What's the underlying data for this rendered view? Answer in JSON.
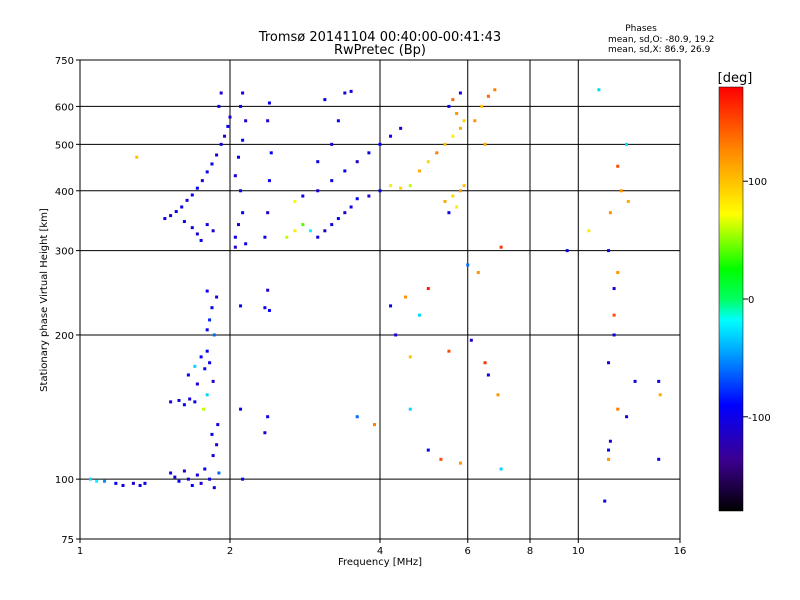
{
  "chart_data": {
    "type": "scatter",
    "title": "Tromsø 20141104 00:40:00-00:41:43",
    "subtitle": "RwPretec (Bp)",
    "xlabel": "Frequency [MHz]",
    "ylabel": "Stationary phase Virtual Height [km]",
    "xscale": "log",
    "yscale": "log",
    "xlim": [
      1,
      16
    ],
    "ylim": [
      75,
      750
    ],
    "xticks": [
      {
        "value": 1,
        "label": "1"
      },
      {
        "value": 2,
        "label": "2"
      },
      {
        "value": 4,
        "label": "4"
      },
      {
        "value": 6,
        "label": "6"
      },
      {
        "value": 8,
        "label": "8"
      },
      {
        "value": 10,
        "label": "10"
      },
      {
        "value": 16,
        "label": "16"
      }
    ],
    "xgrid": [
      2,
      4,
      6,
      8,
      10
    ],
    "yticks": [
      {
        "value": 75,
        "label": "75"
      },
      {
        "value": 100,
        "label": "100"
      },
      {
        "value": 200,
        "label": "200"
      },
      {
        "value": 300,
        "label": "300"
      },
      {
        "value": 400,
        "label": "400"
      },
      {
        "value": 500,
        "label": "500"
      },
      {
        "value": 600,
        "label": "600"
      },
      {
        "value": 750,
        "label": "750"
      }
    ],
    "ygrid": [
      100,
      200,
      300,
      400,
      500,
      600
    ],
    "grid": true,
    "colorbar": {
      "label": "[deg]",
      "range": [
        -180,
        180
      ],
      "ticks": [
        {
          "value": 100,
          "label": "100"
        },
        {
          "value": 0,
          "label": "0"
        },
        {
          "value": -100,
          "label": "-100"
        }
      ]
    },
    "stats": {
      "heading": "Phases",
      "line1": "mean, sd,O: -80.9, 19.2",
      "line2": "mean, sd,X:  86.9, 26.9"
    },
    "points": [
      [
        1.05,
        100,
        -30
      ],
      [
        1.08,
        99,
        -20
      ],
      [
        1.12,
        99,
        -50
      ],
      [
        1.18,
        98,
        -90
      ],
      [
        1.22,
        97,
        -100
      ],
      [
        1.28,
        98,
        -110
      ],
      [
        1.32,
        97,
        -100
      ],
      [
        1.35,
        98,
        -95
      ],
      [
        1.52,
        103,
        -100
      ],
      [
        1.55,
        101,
        -110
      ],
      [
        1.58,
        99,
        -95
      ],
      [
        1.62,
        104,
        -110
      ],
      [
        1.65,
        100,
        -100
      ],
      [
        1.68,
        97,
        -90
      ],
      [
        1.72,
        102,
        -105
      ],
      [
        1.75,
        98,
        -110
      ],
      [
        1.78,
        105,
        -95
      ],
      [
        1.82,
        100,
        -100
      ],
      [
        1.86,
        96,
        -100
      ],
      [
        1.9,
        103,
        -60
      ],
      [
        1.85,
        112,
        -100
      ],
      [
        1.88,
        118,
        -110
      ],
      [
        1.84,
        124,
        -90
      ],
      [
        1.89,
        130,
        -100
      ],
      [
        1.52,
        145,
        -110
      ],
      [
        1.58,
        146,
        -100
      ],
      [
        1.62,
        143,
        -90
      ],
      [
        1.66,
        147,
        -110
      ],
      [
        1.7,
        145,
        -100
      ],
      [
        1.65,
        165,
        -100
      ],
      [
        1.7,
        172,
        -30
      ],
      [
        1.75,
        180,
        -90
      ],
      [
        1.78,
        170,
        -100
      ],
      [
        1.72,
        158,
        -110
      ],
      [
        1.8,
        185,
        -95
      ],
      [
        1.82,
        175,
        -100
      ],
      [
        1.85,
        160,
        -110
      ],
      [
        1.8,
        150,
        -30
      ],
      [
        1.77,
        140,
        60
      ],
      [
        1.8,
        205,
        -100
      ],
      [
        1.82,
        215,
        -80
      ],
      [
        1.84,
        228,
        -90
      ],
      [
        1.8,
        247,
        -100
      ],
      [
        1.86,
        200,
        -60
      ],
      [
        1.88,
        240,
        -110
      ],
      [
        1.48,
        350,
        -100
      ],
      [
        1.52,
        355,
        -110
      ],
      [
        1.56,
        362,
        -95
      ],
      [
        1.6,
        370,
        -100
      ],
      [
        1.64,
        382,
        -110
      ],
      [
        1.68,
        392,
        -100
      ],
      [
        1.72,
        405,
        -95
      ],
      [
        1.76,
        420,
        -110
      ],
      [
        1.8,
        438,
        -100
      ],
      [
        1.84,
        455,
        -90
      ],
      [
        1.88,
        475,
        -110
      ],
      [
        1.92,
        500,
        -100
      ],
      [
        1.95,
        520,
        -110
      ],
      [
        1.98,
        545,
        -100
      ],
      [
        2.0,
        570,
        -110
      ],
      [
        1.9,
        600,
        -100
      ],
      [
        1.92,
        640,
        -110
      ],
      [
        1.62,
        345,
        -100
      ],
      [
        1.68,
        335,
        -105
      ],
      [
        1.72,
        325,
        -110
      ],
      [
        1.75,
        315,
        -95
      ],
      [
        1.8,
        340,
        -100
      ],
      [
        1.85,
        330,
        -110
      ],
      [
        2.05,
        320,
        -100
      ],
      [
        2.08,
        340,
        -110
      ],
      [
        2.12,
        360,
        -95
      ],
      [
        2.1,
        400,
        -100
      ],
      [
        2.05,
        430,
        -110
      ],
      [
        2.08,
        470,
        -100
      ],
      [
        2.12,
        510,
        -90
      ],
      [
        2.15,
        560,
        -110
      ],
      [
        2.1,
        600,
        -100
      ],
      [
        2.12,
        640,
        -105
      ],
      [
        2.05,
        305,
        -110
      ],
      [
        2.15,
        310,
        -100
      ],
      [
        2.35,
        320,
        -100
      ],
      [
        2.38,
        360,
        -110
      ],
      [
        2.4,
        420,
        -100
      ],
      [
        2.42,
        480,
        -95
      ],
      [
        2.38,
        560,
        -110
      ],
      [
        2.4,
        610,
        -100
      ],
      [
        2.1,
        230,
        -100
      ],
      [
        2.35,
        228,
        -100
      ],
      [
        2.38,
        248,
        -110
      ],
      [
        2.4,
        225,
        -95
      ],
      [
        2.38,
        135,
        -100
      ],
      [
        2.35,
        125,
        -110
      ],
      [
        2.1,
        140,
        -100
      ],
      [
        2.12,
        100,
        -90
      ],
      [
        2.6,
        320,
        60
      ],
      [
        2.7,
        330,
        80
      ],
      [
        2.8,
        340,
        40
      ],
      [
        2.9,
        330,
        -20
      ],
      [
        3.0,
        320,
        -100
      ],
      [
        3.1,
        330,
        -110
      ],
      [
        3.2,
        340,
        -100
      ],
      [
        3.3,
        350,
        -95
      ],
      [
        3.4,
        360,
        -110
      ],
      [
        3.5,
        370,
        -100
      ],
      [
        3.6,
        385,
        -90
      ],
      [
        3.8,
        390,
        -110
      ],
      [
        4.0,
        400,
        -100
      ],
      [
        4.2,
        410,
        80
      ],
      [
        4.4,
        405,
        90
      ],
      [
        4.6,
        410,
        60
      ],
      [
        2.7,
        380,
        70
      ],
      [
        2.8,
        390,
        -100
      ],
      [
        3.0,
        400,
        -110
      ],
      [
        3.2,
        420,
        -100
      ],
      [
        3.4,
        440,
        -90
      ],
      [
        3.6,
        460,
        -110
      ],
      [
        3.8,
        480,
        -100
      ],
      [
        4.0,
        500,
        -95
      ],
      [
        4.2,
        520,
        -100
      ],
      [
        4.4,
        540,
        -110
      ],
      [
        3.0,
        460,
        -100
      ],
      [
        3.2,
        500,
        -110
      ],
      [
        3.3,
        560,
        -100
      ],
      [
        3.1,
        620,
        -95
      ],
      [
        3.4,
        640,
        -110
      ],
      [
        3.5,
        645,
        -100
      ],
      [
        4.8,
        440,
        110
      ],
      [
        5.0,
        460,
        90
      ],
      [
        5.2,
        480,
        130
      ],
      [
        5.4,
        500,
        100
      ],
      [
        5.6,
        520,
        80
      ],
      [
        5.8,
        540,
        110
      ],
      [
        5.9,
        560,
        90
      ],
      [
        5.7,
        580,
        120
      ],
      [
        5.5,
        600,
        -100
      ],
      [
        5.6,
        620,
        140
      ],
      [
        5.8,
        640,
        -110
      ],
      [
        5.4,
        380,
        110
      ],
      [
        5.6,
        390,
        90
      ],
      [
        5.8,
        400,
        120
      ],
      [
        5.9,
        410,
        100
      ],
      [
        5.7,
        370,
        80
      ],
      [
        5.5,
        360,
        -100
      ],
      [
        6.2,
        560,
        120
      ],
      [
        6.4,
        600,
        100
      ],
      [
        6.6,
        630,
        140
      ],
      [
        6.8,
        650,
        130
      ],
      [
        6.5,
        500,
        110
      ],
      [
        7.0,
        305,
        160
      ],
      [
        6.0,
        280,
        -60
      ],
      [
        6.3,
        270,
        120
      ],
      [
        5.0,
        250,
        170
      ],
      [
        4.5,
        240,
        120
      ],
      [
        4.2,
        230,
        -100
      ],
      [
        4.8,
        220,
        -30
      ],
      [
        4.3,
        200,
        -110
      ],
      [
        6.1,
        195,
        -110
      ],
      [
        5.5,
        185,
        150
      ],
      [
        4.6,
        180,
        100
      ],
      [
        6.5,
        175,
        160
      ],
      [
        6.6,
        165,
        -100
      ],
      [
        6.9,
        150,
        120
      ],
      [
        4.6,
        140,
        -30
      ],
      [
        3.6,
        135,
        -60
      ],
      [
        3.9,
        130,
        130
      ],
      [
        5.0,
        115,
        -100
      ],
      [
        5.3,
        110,
        150
      ],
      [
        5.8,
        108,
        120
      ],
      [
        7.0,
        105,
        -30
      ],
      [
        11.0,
        650,
        -30
      ],
      [
        12.5,
        500,
        -30
      ],
      [
        12.0,
        450,
        150
      ],
      [
        12.2,
        400,
        120
      ],
      [
        12.6,
        380,
        110
      ],
      [
        11.6,
        360,
        120
      ],
      [
        11.5,
        300,
        -100
      ],
      [
        12.0,
        270,
        120
      ],
      [
        11.8,
        250,
        -100
      ],
      [
        11.8,
        220,
        150
      ],
      [
        11.8,
        200,
        -100
      ],
      [
        11.5,
        175,
        -110
      ],
      [
        13.0,
        160,
        -100
      ],
      [
        14.5,
        160,
        -100
      ],
      [
        14.6,
        150,
        110
      ],
      [
        12.0,
        140,
        130
      ],
      [
        12.5,
        135,
        -100
      ],
      [
        11.6,
        120,
        -110
      ],
      [
        11.5,
        115,
        -100
      ],
      [
        11.5,
        110,
        120
      ],
      [
        14.5,
        110,
        -100
      ],
      [
        11.3,
        90,
        -100
      ],
      [
        1.3,
        470,
        100
      ],
      [
        9.5,
        300,
        -100
      ],
      [
        10.5,
        330,
        80
      ]
    ]
  }
}
